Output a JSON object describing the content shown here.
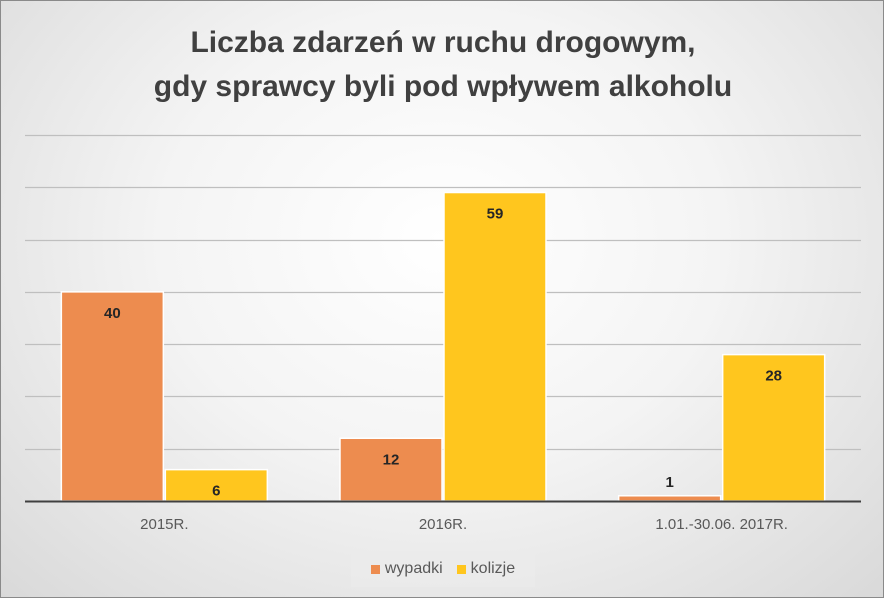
{
  "chart_data": {
    "type": "bar",
    "title_lines": [
      "Liczba zdarzeń w ruchu drogowym,",
      "gdy sprawcy byli pod wpływem alkoholu"
    ],
    "categories": [
      "2015R.",
      "2016R.",
      "1.01.-30.06.  2017R."
    ],
    "series": [
      {
        "name": "wypadki",
        "values": [
          40,
          12,
          1
        ],
        "color": "#ED8C4F"
      },
      {
        "name": "kolizje",
        "values": [
          6,
          59,
          28
        ],
        "color": "#FFC61E"
      }
    ],
    "ylim": [
      0,
      70
    ],
    "grid": true,
    "legend_position": "bottom"
  }
}
